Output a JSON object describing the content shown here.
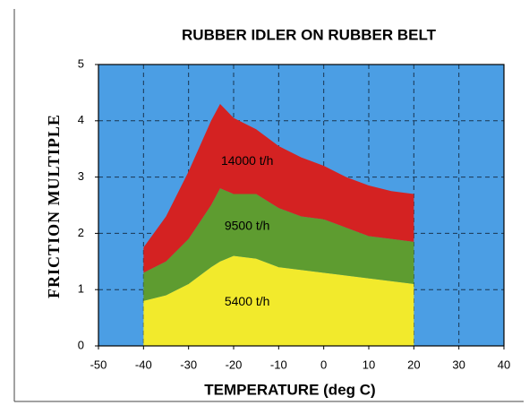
{
  "chart_data": {
    "type": "stacked_area",
    "title": "RUBBER IDLER  ON  RUBBER BELT",
    "xlabel": "TEMPERATURE (deg C)",
    "ylabel": "FRICTION   MULTIPLE",
    "x": [
      -40,
      -35,
      -30,
      -25,
      -23,
      -20,
      -15,
      -10,
      -5,
      0,
      5,
      10,
      15,
      20
    ],
    "series": [
      {
        "name": "5400 t/h",
        "color": "#f2ea2c",
        "values": [
          0.8,
          0.9,
          1.1,
          1.4,
          1.5,
          1.6,
          1.55,
          1.4,
          1.35,
          1.3,
          1.25,
          1.2,
          1.15,
          1.1
        ]
      },
      {
        "name": "9500 t/h",
        "color": "#5e9c30",
        "values": [
          0.5,
          0.6,
          0.8,
          1.1,
          1.3,
          1.1,
          1.15,
          1.05,
          0.95,
          0.95,
          0.85,
          0.75,
          0.75,
          0.75
        ]
      },
      {
        "name": "14000 t/h",
        "color": "#d42222",
        "values": [
          0.45,
          0.8,
          1.2,
          1.5,
          1.5,
          1.35,
          1.15,
          1.1,
          1.05,
          0.95,
          0.9,
          0.9,
          0.85,
          0.85
        ]
      }
    ],
    "xlim": [
      -50,
      40
    ],
    "xticks": [
      -50,
      -40,
      -30,
      -20,
      -10,
      0,
      10,
      20,
      30,
      40
    ],
    "ylim": [
      0,
      5
    ],
    "yticks": [
      0,
      1,
      2,
      3,
      4,
      5
    ],
    "grid": true,
    "background": "#4b9ee4"
  }
}
